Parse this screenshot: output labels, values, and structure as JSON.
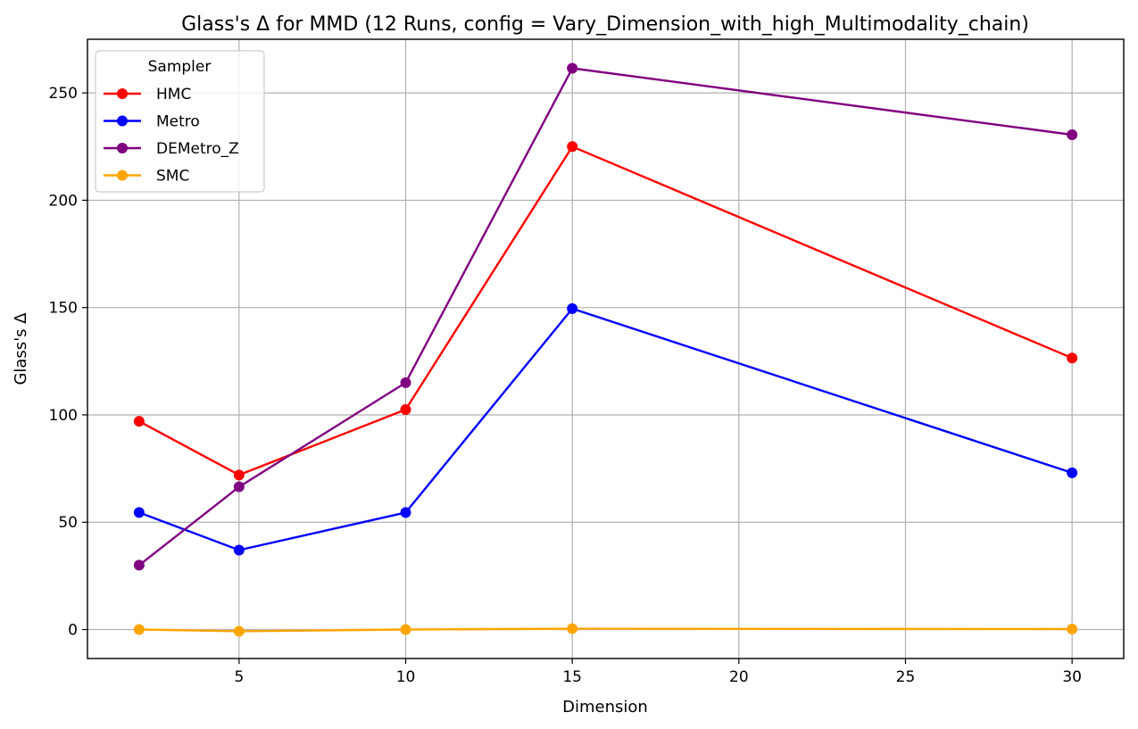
{
  "chart_data": {
    "type": "line",
    "title": "Glass's Δ for MMD (12 Runs, config = Vary_Dimension_with_high_Multimodality_chain)",
    "xlabel": "Dimension",
    "ylabel": "Glass's Δ",
    "x": [
      2,
      5,
      10,
      15,
      30
    ],
    "xlim": [
      0.45,
      31.55
    ],
    "ylim": [
      -13.5,
      275
    ],
    "xticks": [
      5,
      10,
      15,
      20,
      25,
      30
    ],
    "yticks": [
      0,
      50,
      100,
      150,
      200,
      250
    ],
    "grid": true,
    "legend": {
      "title": "Sampler",
      "placement": "top-left"
    },
    "series": [
      {
        "name": "HMC",
        "color": "#ff0000",
        "values": [
          97,
          72,
          102.5,
          225,
          126.5
        ]
      },
      {
        "name": "Metro",
        "color": "#0000ff",
        "values": [
          54.5,
          37,
          54.5,
          149.5,
          73
        ]
      },
      {
        "name": "DEMetro_Z",
        "color": "#800080",
        "values": [
          30,
          66.5,
          115,
          261.5,
          230.5
        ]
      },
      {
        "name": "SMC",
        "color": "#ffa500",
        "values": [
          0,
          -0.8,
          0,
          0.4,
          0.2
        ]
      }
    ]
  }
}
